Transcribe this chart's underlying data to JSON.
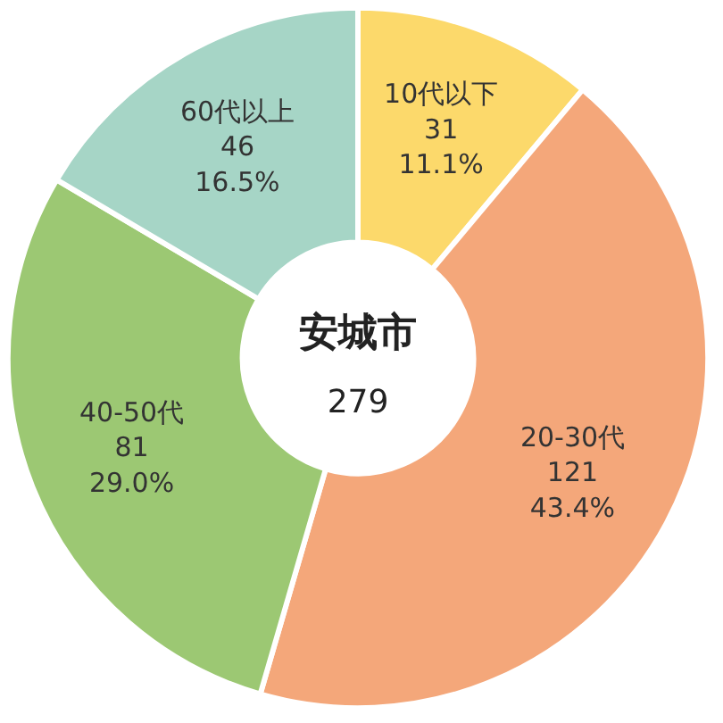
{
  "chart_data": {
    "type": "donut",
    "title": "安城市",
    "subtitle": "279",
    "categories": [
      "10代以下",
      "20-30代",
      "40-50代",
      "60代以上"
    ],
    "values": [
      11.1,
      43.4,
      29.0,
      16.5
    ],
    "colors": [
      "#fcd96b",
      "#f4a77a",
      "#9cc873",
      "#a6d5c6"
    ],
    "value_labels": [
      "31\n11.1%",
      "121\n43.4%",
      "81\n29.0%",
      "46\n16.5%"
    ]
  }
}
